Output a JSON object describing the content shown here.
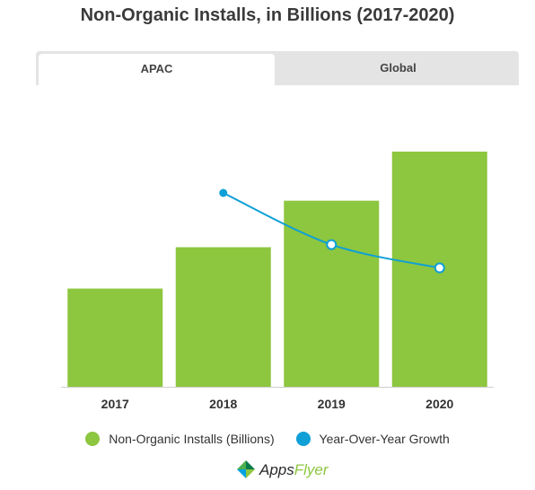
{
  "title": "Non-Organic Installs, in Billions (2017-2020)",
  "tabs": [
    {
      "label": "APAC",
      "active": true
    },
    {
      "label": "Global",
      "active": false
    }
  ],
  "chart_data": {
    "type": "bar",
    "categories": [
      "2017",
      "2018",
      "2019",
      "2020"
    ],
    "series": [
      {
        "name": "Non-Organic Installs (Billions)",
        "kind": "bar",
        "color": "#8dc63f",
        "values": [
          38,
          54,
          72,
          91
        ]
      },
      {
        "name": "Year-Over-Year Growth",
        "kind": "line",
        "color": "#0ea0d6",
        "values": [
          null,
          75,
          55,
          46
        ]
      }
    ],
    "ylim": [
      0,
      100
    ],
    "line_ylim": [
      0,
      100
    ],
    "grid": false,
    "legend": "bottom"
  },
  "legend": [
    {
      "label": "Non-Organic Installs (Billions)",
      "color": "#8dc63f"
    },
    {
      "label": "Year-Over-Year Growth",
      "color": "#0ea0d6"
    }
  ],
  "logo": {
    "apps": "Apps",
    "flyer": "Flyer",
    "icon": "appsflyer-logo-icon"
  }
}
